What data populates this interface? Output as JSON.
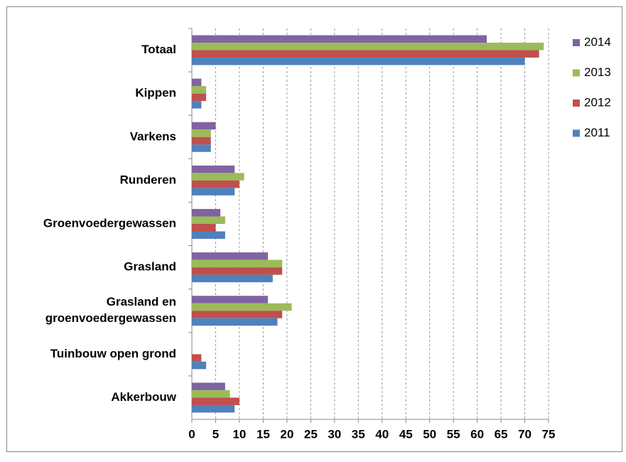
{
  "chart_data": {
    "type": "bar",
    "orientation": "horizontal",
    "categories": [
      "Totaal",
      "Kippen",
      "Varkens",
      "Runderen",
      "Groenvoedergewassen",
      "Grasland",
      "Grasland en groenvoedergewassen",
      "Tuinbouw open grond",
      "Akkerbouw"
    ],
    "series": [
      {
        "name": "2014",
        "color": "#8064a2",
        "values": [
          62,
          2,
          5,
          9,
          6,
          16,
          16,
          null,
          7
        ]
      },
      {
        "name": "2013",
        "color": "#9bbb59",
        "values": [
          74,
          3,
          4,
          11,
          7,
          19,
          21,
          null,
          8
        ]
      },
      {
        "name": "2012",
        "color": "#c0504d",
        "values": [
          73,
          3,
          4,
          10,
          5,
          19,
          19,
          2,
          10
        ]
      },
      {
        "name": "2011",
        "color": "#4f81bd",
        "values": [
          70,
          2,
          4,
          9,
          7,
          17,
          18,
          3,
          9
        ]
      }
    ],
    "xlim": [
      0,
      75
    ],
    "xticks": [
      0,
      5,
      10,
      15,
      20,
      25,
      30,
      35,
      40,
      45,
      50,
      55,
      60,
      65,
      70,
      75
    ],
    "grid": true,
    "legend": "right"
  }
}
